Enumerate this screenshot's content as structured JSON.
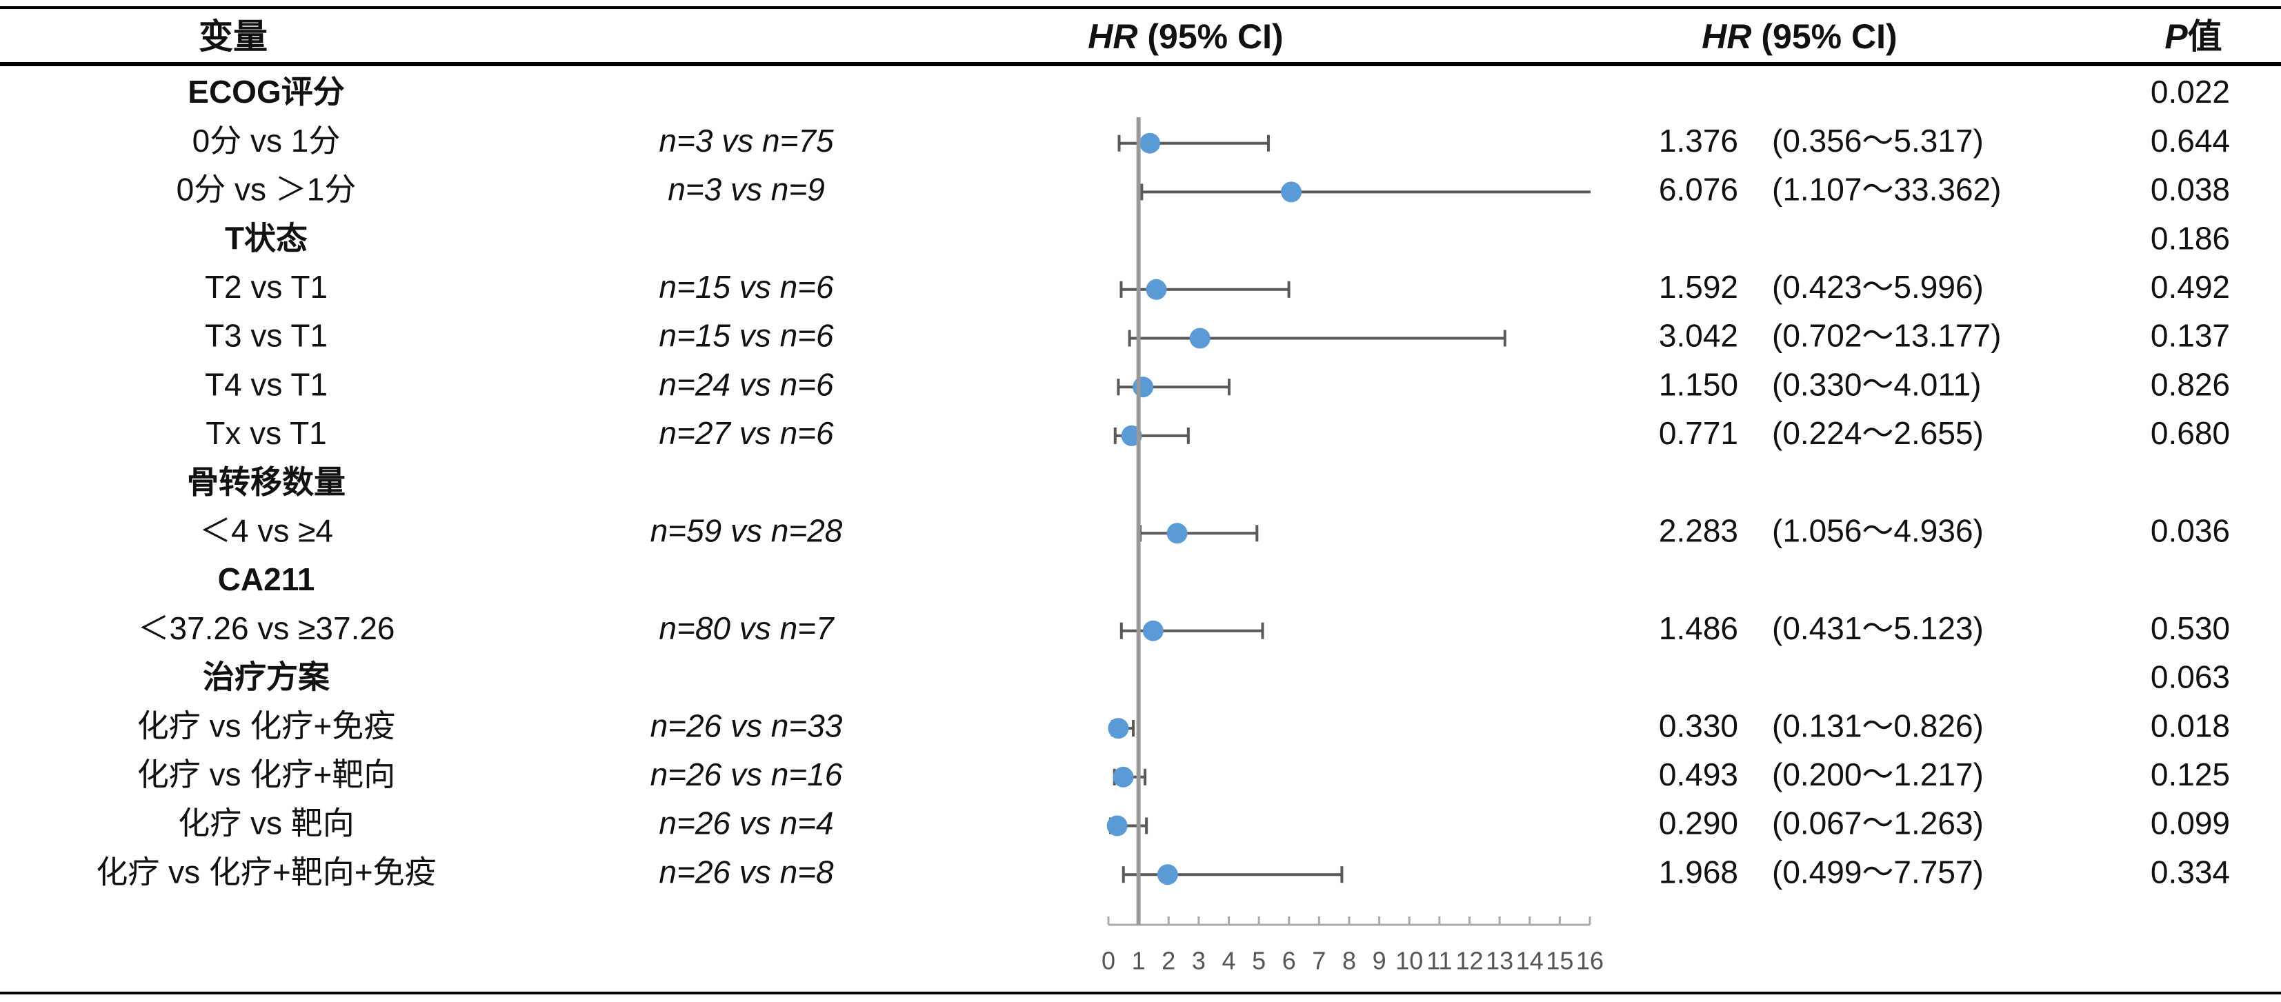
{
  "chart_data": {
    "type": "forest",
    "headers": {
      "variable": "变量",
      "plot_hr": "HR",
      "plot_ci": " (95% CI)",
      "table_hr": "HR",
      "table_ci": " (95% CI)",
      "p_italic": "P",
      "p_rest": "值"
    },
    "groups": [
      {
        "label": "ECOG评分",
        "p": "0.022",
        "items": [
          {
            "label": "0分 vs 1分",
            "n": "n=3 vs n=75",
            "hr": 1.376,
            "hr_label": "1.376",
            "lower": 0.356,
            "upper": 5.317,
            "ci_label": "(0.356～5.317)",
            "p": "0.644"
          },
          {
            "label": "0分 vs ＞1分",
            "n": "n=3 vs n=9",
            "hr": 6.076,
            "hr_label": "6.076",
            "lower": 1.107,
            "upper": 33.362,
            "ci_label": "(1.107～33.362)",
            "p": "0.038"
          }
        ]
      },
      {
        "label": "T状态",
        "p": "0.186",
        "items": [
          {
            "label": "T2 vs T1",
            "n": "n=15 vs n=6",
            "hr": 1.592,
            "hr_label": "1.592",
            "lower": 0.423,
            "upper": 5.996,
            "ci_label": "(0.423～5.996)",
            "p": "0.492"
          },
          {
            "label": "T3 vs T1",
            "n": "n=15 vs n=6",
            "hr": 3.042,
            "hr_label": "3.042",
            "lower": 0.702,
            "upper": 13.177,
            "ci_label": "(0.702～13.177)",
            "p": "0.137"
          },
          {
            "label": "T4 vs T1",
            "n": "n=24 vs n=6",
            "hr": 1.15,
            "hr_label": "1.150",
            "lower": 0.33,
            "upper": 4.011,
            "ci_label": "(0.330～4.011)",
            "p": "0.826"
          },
          {
            "label": "Tx vs T1",
            "n": "n=27 vs n=6",
            "hr": 0.771,
            "hr_label": "0.771",
            "lower": 0.224,
            "upper": 2.655,
            "ci_label": "(0.224～2.655)",
            "p": "0.680"
          }
        ]
      },
      {
        "label": "骨转移数量",
        "items": [
          {
            "label": "＜4 vs ≥4",
            "n": "n=59 vs n=28",
            "hr": 2.283,
            "hr_label": "2.283",
            "lower": 1.056,
            "upper": 4.936,
            "ci_label": "(1.056～4.936)",
            "p": "0.036"
          }
        ]
      },
      {
        "label": "CA211",
        "items": [
          {
            "label": "＜37.26 vs ≥37.26",
            "n": "n=80 vs n=7",
            "hr": 1.486,
            "hr_label": "1.486",
            "lower": 0.431,
            "upper": 5.123,
            "ci_label": "(0.431～5.123)",
            "p": "0.530"
          }
        ]
      },
      {
        "label": "治疗方案",
        "p": "0.063",
        "items": [
          {
            "label": "化疗 vs 化疗+免疫",
            "n": "n=26 vs n=33",
            "hr": 0.33,
            "hr_label": "0.330",
            "lower": 0.131,
            "upper": 0.826,
            "ci_label": "(0.131～0.826)",
            "p": "0.018"
          },
          {
            "label": "化疗 vs 化疗+靶向",
            "n": "n=26 vs n=16",
            "hr": 0.493,
            "hr_label": "0.493",
            "lower": 0.2,
            "upper": 1.217,
            "ci_label": "(0.200～1.217)",
            "p": "0.125"
          },
          {
            "label": "化疗 vs 靶向",
            "n": "n=26 vs n=4",
            "hr": 0.29,
            "hr_label": "0.290",
            "lower": 0.067,
            "upper": 1.263,
            "ci_label": "(0.067～1.263)",
            "p": "0.099"
          },
          {
            "label": "化疗 vs 化疗+靶向+免疫",
            "n": "n=26 vs n=8",
            "hr": 1.968,
            "hr_label": "1.968",
            "lower": 0.499,
            "upper": 7.757,
            "ci_label": "(0.499～7.757)",
            "p": "0.334"
          }
        ]
      }
    ],
    "xlim": [
      0,
      16
    ],
    "xticks": [
      0,
      1,
      2,
      3,
      4,
      5,
      6,
      7,
      8,
      9,
      10,
      11,
      12,
      13,
      14,
      15,
      16
    ],
    "reference": 1,
    "color": "#5b9bd5"
  }
}
